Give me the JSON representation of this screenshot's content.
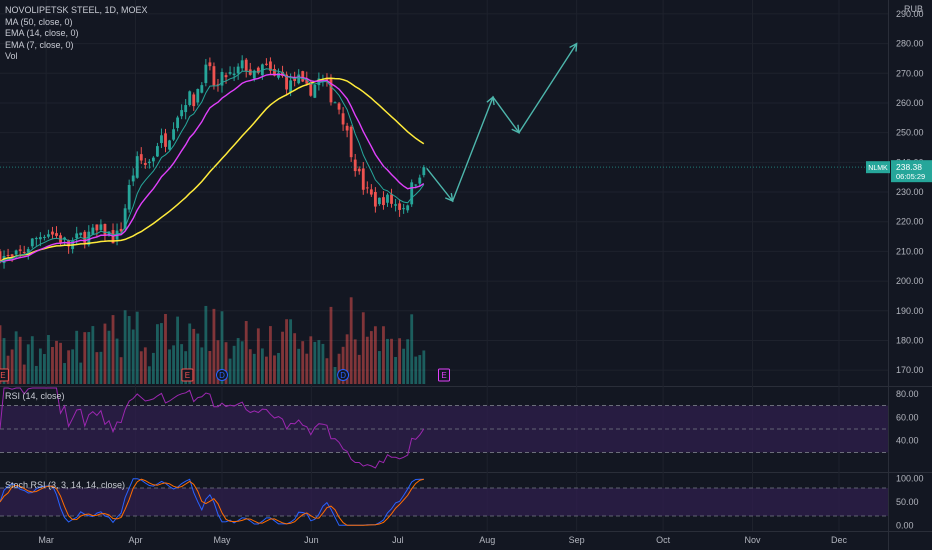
{
  "legend": {
    "symbol_line": "NOVOLIPETSK STEEL, 1D, MOEX",
    "ma_label": "MA (50, close, 0)",
    "ema14_label": "EMA (14, close, 0)",
    "ema7_label": "EMA (7, close, 0)",
    "vol_label": "Vol"
  },
  "currency": "RUB",
  "price_badge": {
    "symbol": "NLMK",
    "price": "238.38",
    "countdown": "06:05:29",
    "color": "#26a69a"
  },
  "rsi_label": "RSI (14, close)",
  "stoch_label": "Stoch RSI (3, 3, 14, 14, close)",
  "event_markers": {
    "earnings": "E",
    "dividend": "D"
  },
  "colors": {
    "background": "#131722",
    "up": "#26a69a",
    "down": "#ef5350",
    "ma50": "#ffeb3b",
    "ema14": "#e040fb",
    "ema7": "#26a69a",
    "rsi": "#9c27b0",
    "rsi_band": "#2d1e4a",
    "stoch_k": "#2962ff",
    "stoch_d": "#ff6d00",
    "projection": "#4db6ac"
  },
  "chart_data": {
    "type": "candlestick",
    "ylim": [
      165,
      292
    ],
    "y_ticks": [
      {
        "value": 290,
        "label": "290.00"
      },
      {
        "value": 280,
        "label": "280.00"
      },
      {
        "value": 270,
        "label": "270.00"
      },
      {
        "value": 260,
        "label": "260.00"
      },
      {
        "value": 250,
        "label": "250.00"
      },
      {
        "value": 240,
        "label": "240.00"
      },
      {
        "value": 230,
        "label": "230.00"
      },
      {
        "value": 220,
        "label": "220.00"
      },
      {
        "value": 210,
        "label": "210.00"
      },
      {
        "value": 200,
        "label": "200.00"
      },
      {
        "value": 190,
        "label": "190.00"
      },
      {
        "value": 180,
        "label": "180.00"
      },
      {
        "value": 170,
        "label": "170.00"
      }
    ],
    "x_range_days": [
      0,
      308
    ],
    "x_ticks": [
      {
        "day": 16,
        "label": "Mar"
      },
      {
        "day": 47,
        "label": "Apr"
      },
      {
        "day": 77,
        "label": "May"
      },
      {
        "day": 108,
        "label": "Jun"
      },
      {
        "day": 138,
        "label": "Jul"
      },
      {
        "day": 169,
        "label": "Aug"
      },
      {
        "day": 200,
        "label": "Sep"
      },
      {
        "day": 230,
        "label": "Oct"
      },
      {
        "day": 261,
        "label": "Nov"
      },
      {
        "day": 291,
        "label": "Dec"
      }
    ],
    "close_anchors": [
      [
        0,
        209
      ],
      [
        4,
        207
      ],
      [
        8,
        210
      ],
      [
        12,
        214
      ],
      [
        16,
        217
      ],
      [
        20,
        215
      ],
      [
        24,
        212
      ],
      [
        28,
        215
      ],
      [
        32,
        216
      ],
      [
        36,
        217
      ],
      [
        40,
        214
      ],
      [
        42,
        218
      ],
      [
        44,
        228
      ],
      [
        46,
        236
      ],
      [
        48,
        241
      ],
      [
        51,
        239
      ],
      [
        53,
        242
      ],
      [
        55,
        248
      ],
      [
        57,
        247
      ],
      [
        59,
        250
      ],
      [
        61,
        256
      ],
      [
        63,
        258
      ],
      [
        65,
        263
      ],
      [
        67,
        260
      ],
      [
        69,
        266
      ],
      [
        71,
        271
      ],
      [
        73,
        270
      ],
      [
        75,
        264
      ],
      [
        77,
        268
      ],
      [
        79,
        270
      ],
      [
        81,
        268
      ],
      [
        83,
        272
      ],
      [
        85,
        273
      ],
      [
        87,
        270
      ],
      [
        89,
        268
      ],
      [
        91,
        272
      ],
      [
        93,
        271
      ],
      [
        95,
        268
      ],
      [
        97,
        270
      ],
      [
        99,
        267
      ],
      [
        101,
        266
      ],
      [
        103,
        269
      ],
      [
        105,
        265
      ],
      [
        107,
        264
      ],
      [
        109,
        266
      ],
      [
        111,
        268
      ],
      [
        113,
        266
      ],
      [
        115,
        262
      ],
      [
        117,
        260
      ],
      [
        119,
        255
      ],
      [
        121,
        247
      ],
      [
        123,
        240
      ],
      [
        125,
        234
      ],
      [
        127,
        230
      ],
      [
        129,
        228
      ],
      [
        131,
        226
      ],
      [
        133,
        228
      ],
      [
        135,
        227
      ],
      [
        137,
        226
      ],
      [
        139,
        225
      ],
      [
        141,
        226
      ],
      [
        143,
        232
      ],
      [
        145,
        236
      ],
      [
        147,
        239
      ],
      [
        148,
        238.38
      ]
    ],
    "candle_spacing_days": 1.4,
    "last_day": 148,
    "last_close": 238.38,
    "projection_path": [
      [
        148,
        238
      ],
      [
        157,
        227
      ],
      [
        171,
        262
      ],
      [
        180,
        250
      ],
      [
        200,
        280
      ]
    ],
    "event_days": {
      "earnings": [
        1,
        65,
        154
      ],
      "dividend": [
        77,
        119
      ]
    },
    "volume_max_scale": 100,
    "rsi": {
      "ylim": [
        15,
        85
      ],
      "levels": [
        70,
        50,
        30
      ],
      "y_ticks": [
        80,
        60,
        40
      ]
    },
    "stoch_rsi": {
      "ylim": [
        -10,
        110
      ],
      "levels": [
        80,
        20
      ],
      "y_ticks": [
        {
          "value": 100,
          "label": "100.00"
        },
        {
          "value": 50,
          "label": "50.00"
        },
        {
          "value": 0,
          "label": "0.00"
        }
      ]
    }
  }
}
